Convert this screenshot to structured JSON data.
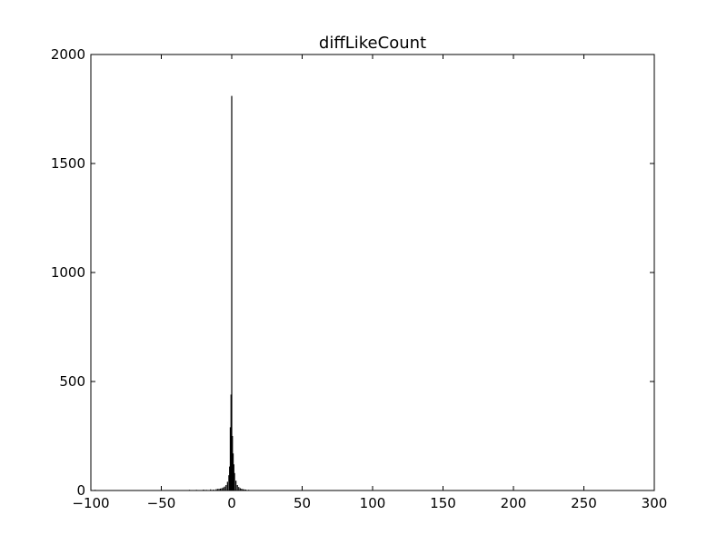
{
  "chart_data": {
    "type": "bar",
    "title": "diffLikeCount",
    "xlabel": "",
    "ylabel": "",
    "xlim": [
      -100,
      300
    ],
    "ylim": [
      0,
      2000
    ],
    "xticks": [
      -100,
      -50,
      0,
      50,
      100,
      150,
      200,
      250,
      300
    ],
    "xtick_labels": [
      "−100",
      "−50",
      "0",
      "50",
      "100",
      "150",
      "200",
      "250",
      "300"
    ],
    "yticks": [
      0,
      500,
      1000,
      1500,
      2000
    ],
    "ytick_labels": [
      "0",
      "500",
      "1000",
      "1500",
      "2000"
    ],
    "grid": false,
    "bar_color": "#000000",
    "bins": [
      {
        "x": -97,
        "count": 3
      },
      {
        "x": -50,
        "count": 2
      },
      {
        "x": -40,
        "count": 2
      },
      {
        "x": -30,
        "count": 3
      },
      {
        "x": -25,
        "count": 3
      },
      {
        "x": -20,
        "count": 4
      },
      {
        "x": -18,
        "count": 3
      },
      {
        "x": -15,
        "count": 5
      },
      {
        "x": -13,
        "count": 4
      },
      {
        "x": -11,
        "count": 6
      },
      {
        "x": -10,
        "count": 7
      },
      {
        "x": -9,
        "count": 8
      },
      {
        "x": -8,
        "count": 9
      },
      {
        "x": -7,
        "count": 11
      },
      {
        "x": -6,
        "count": 14
      },
      {
        "x": -5,
        "count": 18
      },
      {
        "x": -4,
        "count": 25
      },
      {
        "x": -3,
        "count": 40
      },
      {
        "x": -2,
        "count": 70
      },
      {
        "x": -1.5,
        "count": 110
      },
      {
        "x": -1,
        "count": 290
      },
      {
        "x": -0.5,
        "count": 440
      },
      {
        "x": 0,
        "count": 1810
      },
      {
        "x": 0.5,
        "count": 250
      },
      {
        "x": 1,
        "count": 170
      },
      {
        "x": 1.5,
        "count": 120
      },
      {
        "x": 2,
        "count": 80
      },
      {
        "x": 3,
        "count": 45
      },
      {
        "x": 4,
        "count": 25
      },
      {
        "x": 5,
        "count": 16
      },
      {
        "x": 6,
        "count": 11
      },
      {
        "x": 7,
        "count": 8
      },
      {
        "x": 8,
        "count": 6
      },
      {
        "x": 9,
        "count": 5
      },
      {
        "x": 10,
        "count": 4
      },
      {
        "x": 12,
        "count": 3
      },
      {
        "x": 14,
        "count": 2
      },
      {
        "x": 17,
        "count": 2
      },
      {
        "x": 20,
        "count": 1
      },
      {
        "x": 30,
        "count": 1
      }
    ]
  }
}
